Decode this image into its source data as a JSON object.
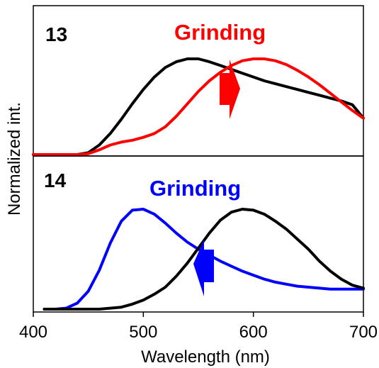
{
  "chart_data": [
    {
      "type": "line",
      "panel_label": "13",
      "annotation": "Grinding",
      "annotation_color": "#ff0000",
      "arrow_direction": "right",
      "arrow_color": "#ff0000",
      "xlim": [
        400,
        700
      ],
      "series": [
        {
          "color": "#000000",
          "x": [
            400,
            420,
            440,
            450,
            460,
            470,
            480,
            490,
            500,
            510,
            520,
            530,
            540,
            550,
            560,
            570,
            580,
            590,
            600,
            610,
            620,
            630,
            640,
            650,
            660,
            670,
            680,
            690,
            700
          ],
          "y": [
            0.0,
            0.0,
            0.0,
            0.02,
            0.1,
            0.22,
            0.37,
            0.53,
            0.68,
            0.81,
            0.91,
            0.97,
            1.0,
            1.0,
            0.97,
            0.93,
            0.89,
            0.85,
            0.81,
            0.77,
            0.74,
            0.71,
            0.68,
            0.65,
            0.62,
            0.59,
            0.56,
            0.52,
            0.38
          ]
        },
        {
          "color": "#ff0000",
          "x": [
            400,
            420,
            440,
            450,
            460,
            470,
            480,
            490,
            500,
            510,
            520,
            530,
            540,
            550,
            560,
            570,
            580,
            590,
            600,
            610,
            620,
            630,
            640,
            650,
            660,
            670,
            680,
            690,
            700
          ],
          "y": [
            0.0,
            0.0,
            0.0,
            0.01,
            0.05,
            0.1,
            0.13,
            0.15,
            0.18,
            0.22,
            0.29,
            0.4,
            0.53,
            0.66,
            0.77,
            0.86,
            0.93,
            0.98,
            1.0,
            1.0,
            0.98,
            0.94,
            0.88,
            0.81,
            0.73,
            0.64,
            0.55,
            0.46,
            0.38
          ]
        }
      ]
    },
    {
      "type": "line",
      "panel_label": "14",
      "annotation": "Grinding",
      "annotation_color": "#0000ff",
      "arrow_direction": "left",
      "arrow_color": "#0000ff",
      "xlim": [
        400,
        700
      ],
      "xticks": [
        "400",
        "500",
        "600",
        "700"
      ],
      "series": [
        {
          "color": "#0000ff",
          "x": [
            410,
            420,
            430,
            440,
            450,
            460,
            470,
            480,
            490,
            500,
            510,
            520,
            530,
            540,
            550,
            560,
            570,
            580,
            590,
            600,
            610,
            620,
            630,
            640,
            650,
            660,
            670,
            680,
            690,
            700
          ],
          "y": [
            0.0,
            0.0,
            0.01,
            0.06,
            0.18,
            0.39,
            0.66,
            0.88,
            0.99,
            1.0,
            0.95,
            0.86,
            0.76,
            0.67,
            0.6,
            0.54,
            0.48,
            0.43,
            0.38,
            0.34,
            0.3,
            0.27,
            0.25,
            0.23,
            0.22,
            0.21,
            0.2,
            0.2,
            0.2,
            0.2
          ]
        },
        {
          "color": "#000000",
          "x": [
            410,
            420,
            440,
            460,
            480,
            490,
            500,
            510,
            520,
            530,
            540,
            550,
            560,
            570,
            580,
            590,
            600,
            610,
            620,
            630,
            640,
            650,
            660,
            670,
            680,
            690,
            700
          ],
          "y": [
            0.0,
            0.0,
            0.0,
            0.0,
            0.02,
            0.05,
            0.09,
            0.15,
            0.22,
            0.33,
            0.46,
            0.61,
            0.76,
            0.89,
            0.97,
            1.0,
            0.99,
            0.95,
            0.88,
            0.8,
            0.7,
            0.6,
            0.48,
            0.38,
            0.3,
            0.24,
            0.21
          ]
        }
      ]
    }
  ],
  "axes": {
    "xlabel": "Wavelength (nm)",
    "ylabel": "Normalized int."
  }
}
